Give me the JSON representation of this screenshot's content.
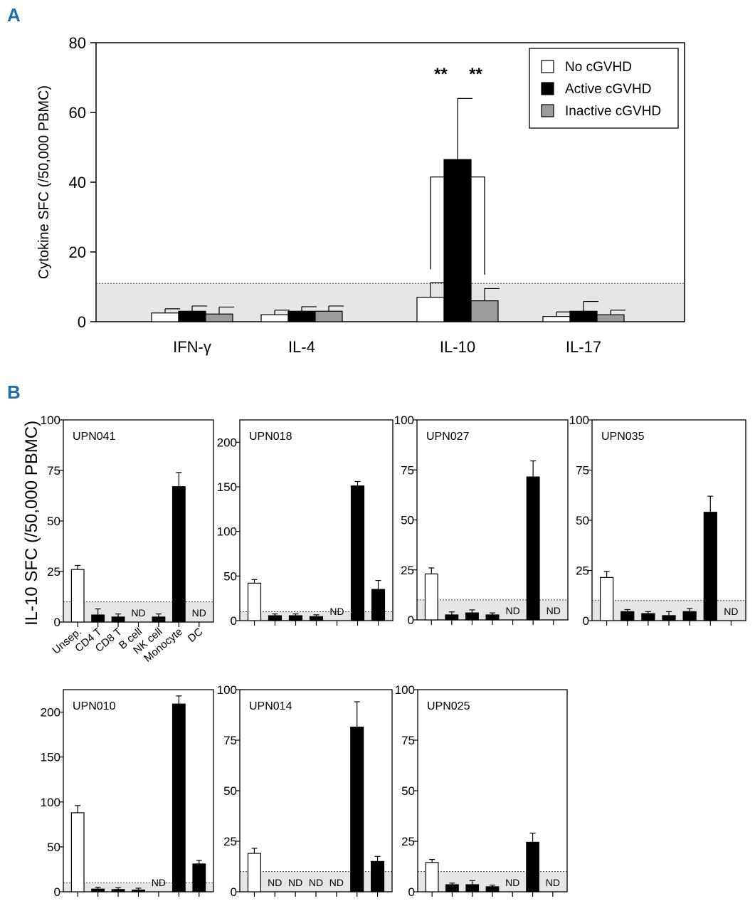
{
  "chart_data": [
    {
      "type": "bar",
      "panel": "A",
      "title": "",
      "xlabel": "",
      "ylabel": "Cytokine SFC (/50,000 PBMC)",
      "ylim": [
        0,
        80
      ],
      "yticks": [
        0,
        20,
        40,
        60,
        80
      ],
      "categories": [
        "IFN-γ",
        "IL-4",
        "IL-10",
        "IL-17"
      ],
      "series": [
        {
          "name": "No cGVHD",
          "color": "#ffffff",
          "values": [
            2.5,
            2,
            7,
            1.5
          ],
          "errors": [
            1.2,
            1.3,
            4.2,
            1.3
          ]
        },
        {
          "name": "Active cGVHD",
          "color": "#000000",
          "values": [
            3,
            3,
            46.5,
            3
          ],
          "errors": [
            1.5,
            1.3,
            17.5,
            2.8
          ]
        },
        {
          "name": "Inactive cGVHD",
          "color": "#9b9b9b",
          "values": [
            2.2,
            3,
            6,
            2
          ],
          "errors": [
            2,
            1.5,
            3.5,
            1.3
          ]
        }
      ],
      "threshold": 11,
      "significance": [
        "**",
        "**"
      ],
      "legend": "top-right"
    },
    {
      "panel": "B",
      "type": "bar",
      "ylabel": "IL-10 SFC (/50,000 PBMC)",
      "categories": [
        "Unsep.",
        "CD4 T",
        "CD8 T",
        "B cell",
        "NK cell",
        "Monocyte",
        "DC"
      ],
      "threshold": 10,
      "subplots": [
        {
          "title": "UPN041",
          "ylim": [
            0,
            100
          ],
          "yticks": [
            0,
            25,
            50,
            75,
            100
          ],
          "values": [
            26,
            3.5,
            2.5,
            null,
            2.5,
            67,
            null
          ],
          "errors": [
            2,
            3,
            1.5,
            0,
            1.5,
            7,
            0
          ],
          "nd": [
            "B cell",
            "DC"
          ]
        },
        {
          "title": "UPN018",
          "ylim": [
            0,
            225
          ],
          "yticks": [
            0,
            50,
            100,
            150,
            200
          ],
          "values": [
            42,
            5.5,
            5.5,
            4.5,
            null,
            151,
            35
          ],
          "errors": [
            4,
            2,
            2,
            2,
            0,
            5,
            10
          ],
          "nd": [
            "NK cell"
          ]
        },
        {
          "title": "UPN027",
          "ylim": [
            0,
            100
          ],
          "yticks": [
            0,
            25,
            50,
            75,
            100
          ],
          "values": [
            23,
            2.5,
            3.5,
            2.5,
            null,
            71.5,
            null
          ],
          "errors": [
            3,
            1.5,
            1.5,
            1,
            0,
            8,
            0
          ],
          "nd": [
            "NK cell",
            "DC"
          ]
        },
        {
          "title": "UPN035",
          "ylim": [
            0,
            100
          ],
          "yticks": [
            0,
            25,
            50,
            75,
            100
          ],
          "values": [
            21.5,
            4.5,
            3.5,
            2.5,
            4.5,
            54,
            null
          ],
          "errors": [
            3,
            1,
            1,
            2,
            1.5,
            8,
            0
          ],
          "nd": [
            "DC"
          ]
        },
        {
          "title": "UPN010",
          "ylim": [
            0,
            225
          ],
          "yticks": [
            0,
            50,
            100,
            150,
            200
          ],
          "values": [
            88,
            3,
            2.5,
            2,
            null,
            209,
            31
          ],
          "errors": [
            8,
            2,
            2,
            2,
            0,
            9,
            4
          ],
          "nd": [
            "NK cell"
          ]
        },
        {
          "title": "UPN014",
          "ylim": [
            0,
            100
          ],
          "yticks": [
            0,
            25,
            50,
            75,
            100
          ],
          "values": [
            19,
            null,
            null,
            null,
            null,
            81.5,
            15
          ],
          "errors": [
            2.5,
            0,
            0,
            0,
            0,
            12.5,
            2.5
          ],
          "nd": [
            "CD4 T",
            "CD8 T",
            "B cell",
            "NK cell"
          ]
        },
        {
          "title": "UPN025",
          "ylim": [
            0,
            100
          ],
          "yticks": [
            0,
            25,
            50,
            75,
            100
          ],
          "values": [
            14.5,
            3.5,
            3.5,
            2.5,
            null,
            24.5,
            null
          ],
          "errors": [
            1.5,
            0.8,
            2,
            0.8,
            0,
            4.5,
            0
          ],
          "nd": [
            "NK cell",
            "DC"
          ]
        }
      ],
      "nd_label": "ND"
    }
  ],
  "panel_labels": {
    "a": "A",
    "b": "B"
  }
}
